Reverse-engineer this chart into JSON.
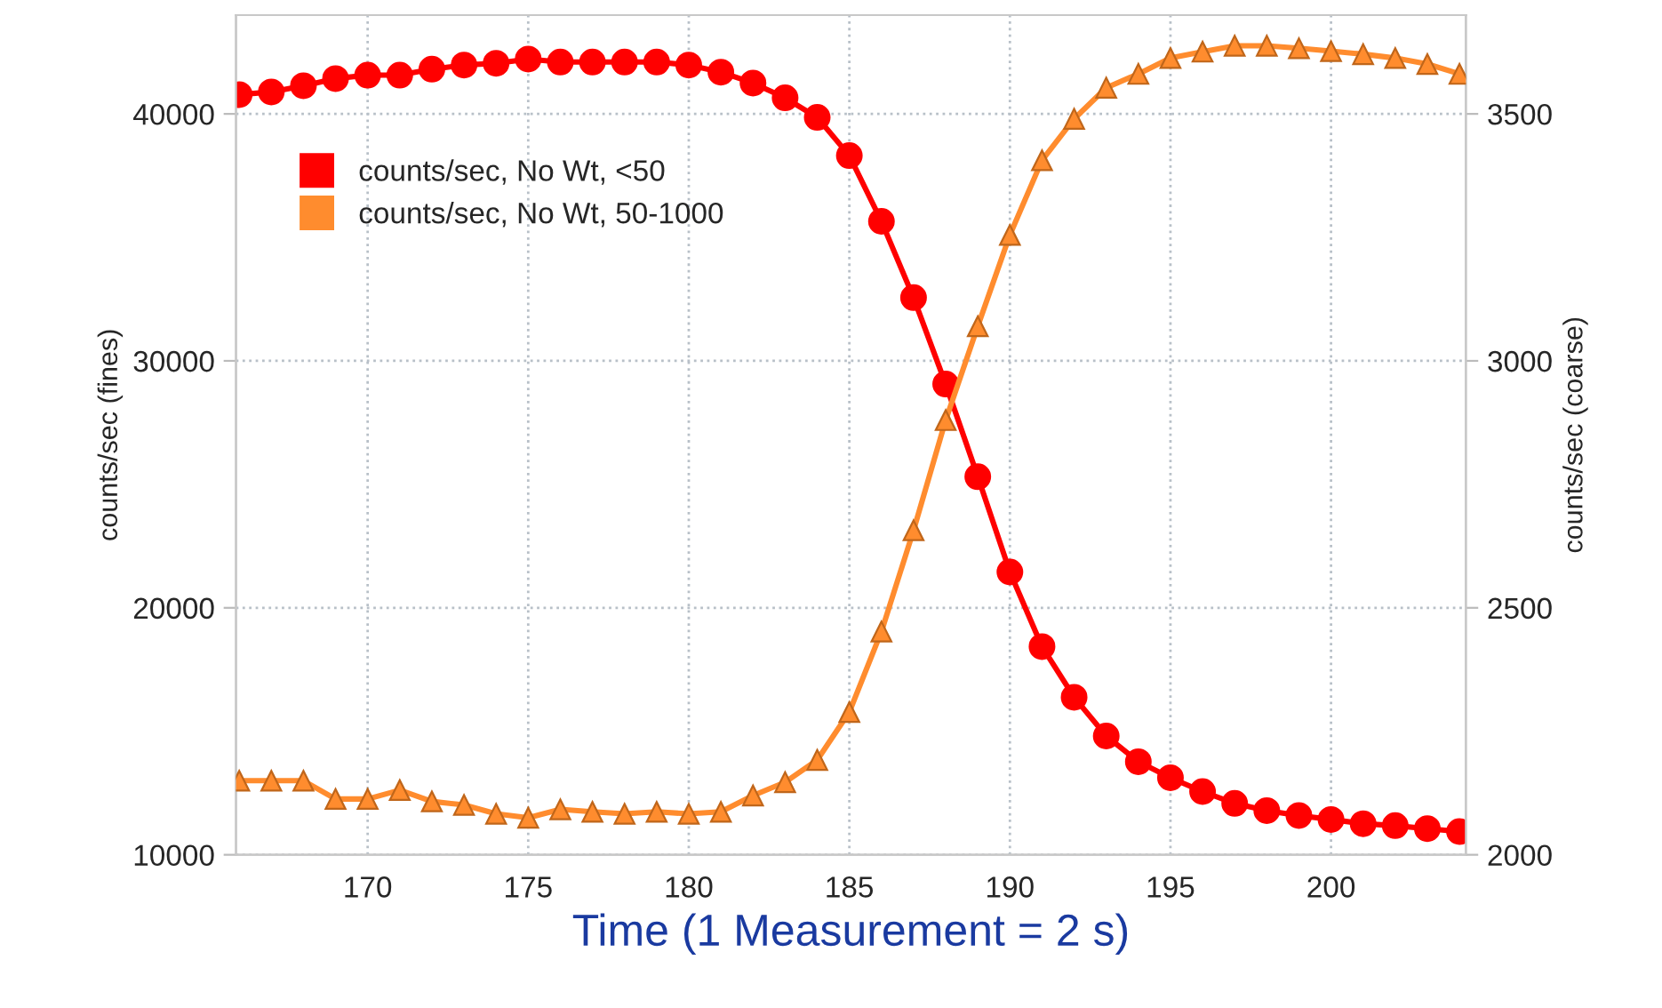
{
  "chart_data": {
    "type": "line",
    "xlabel": "Time (1 Measurement = 2 s)",
    "ylabel": "counts/sec (fines)",
    "y2label": "counts/sec (coarse)",
    "x": [
      166,
      167,
      168,
      169,
      170,
      171,
      172,
      173,
      174,
      175,
      176,
      177,
      178,
      179,
      180,
      181,
      182,
      183,
      184,
      185,
      186,
      187,
      188,
      189,
      190,
      191,
      192,
      193,
      194,
      195,
      196,
      197,
      198,
      199,
      200,
      201,
      202,
      203,
      204
    ],
    "series": [
      {
        "name": "counts/sec, No Wt, <50",
        "color": "#ff0000",
        "marker": "circle",
        "values": [
          40780,
          40890,
          41140,
          41430,
          41570,
          41570,
          41810,
          41980,
          42050,
          42220,
          42100,
          42100,
          42100,
          42100,
          41980,
          41690,
          41250,
          40650,
          39860,
          38310,
          35650,
          32560,
          29060,
          25310,
          21450,
          18430,
          16380,
          14810,
          13770,
          13120,
          12560,
          12080,
          11790,
          11590,
          11430,
          11260,
          11180,
          11060,
          10940
        ]
      },
      {
        "name": "counts/sec, No Wt, 50-1000",
        "color": "#ff8c2e",
        "marker": "triangle",
        "axis": "y2",
        "values": [
          2150,
          2150,
          2150,
          2113,
          2113,
          2131,
          2108,
          2101,
          2083,
          2075,
          2092,
          2087,
          2083,
          2087,
          2083,
          2087,
          2120,
          2147,
          2192,
          2289,
          2452,
          2657,
          2880,
          3070,
          3255,
          3406,
          3490,
          3553,
          3581,
          3613,
          3626,
          3638,
          3638,
          3633,
          3627,
          3621,
          3613,
          3601,
          3581
        ]
      }
    ],
    "xlim": [
      165.9,
      204.2
    ],
    "xticks": [
      170,
      175,
      180,
      185,
      190,
      195,
      200
    ],
    "ylim": [
      10000,
      44000
    ],
    "yticks": [
      10000,
      20000,
      30000,
      40000
    ],
    "y2lim": [
      2000,
      3700
    ],
    "y2ticks": [
      2000,
      2500,
      3000,
      3500
    ],
    "grid": true,
    "legend": "top left"
  }
}
